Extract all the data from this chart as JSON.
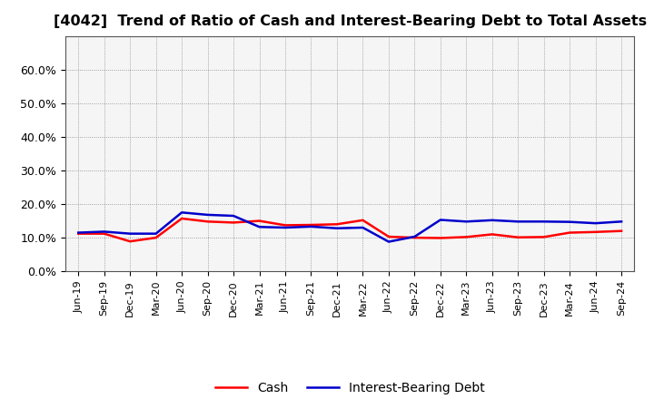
{
  "title": "[4042]  Trend of Ratio of Cash and Interest-Bearing Debt to Total Assets",
  "x_labels": [
    "Jun-19",
    "Sep-19",
    "Dec-19",
    "Mar-20",
    "Jun-20",
    "Sep-20",
    "Dec-20",
    "Mar-21",
    "Jun-21",
    "Sep-21",
    "Dec-21",
    "Mar-22",
    "Jun-22",
    "Sep-22",
    "Dec-22",
    "Mar-23",
    "Jun-23",
    "Sep-23",
    "Dec-23",
    "Mar-24",
    "Jun-24",
    "Sep-24"
  ],
  "cash": [
    0.112,
    0.112,
    0.089,
    0.1,
    0.157,
    0.148,
    0.145,
    0.15,
    0.137,
    0.138,
    0.14,
    0.152,
    0.103,
    0.1,
    0.099,
    0.102,
    0.11,
    0.101,
    0.102,
    0.115,
    0.117,
    0.12
  ],
  "interest_bearing_debt": [
    0.115,
    0.118,
    0.112,
    0.112,
    0.175,
    0.168,
    0.165,
    0.132,
    0.13,
    0.133,
    0.128,
    0.13,
    0.088,
    0.103,
    0.153,
    0.148,
    0.152,
    0.148,
    0.148,
    0.147,
    0.143,
    0.148
  ],
  "cash_color": "#ff0000",
  "debt_color": "#0000cc",
  "background_color": "#ffffff",
  "plot_bg_color": "#f5f5f5",
  "grid_color": "#888888",
  "ylim": [
    0.0,
    0.7
  ],
  "yticks": [
    0.0,
    0.1,
    0.2,
    0.3,
    0.4,
    0.5,
    0.6
  ],
  "ytick_labels": [
    "0.0%",
    "10.0%",
    "20.0%",
    "30.0%",
    "40.0%",
    "50.0%",
    "60.0%"
  ],
  "legend_cash": "Cash",
  "legend_debt": "Interest-Bearing Debt",
  "line_width": 1.8,
  "title_fontsize": 11.5
}
